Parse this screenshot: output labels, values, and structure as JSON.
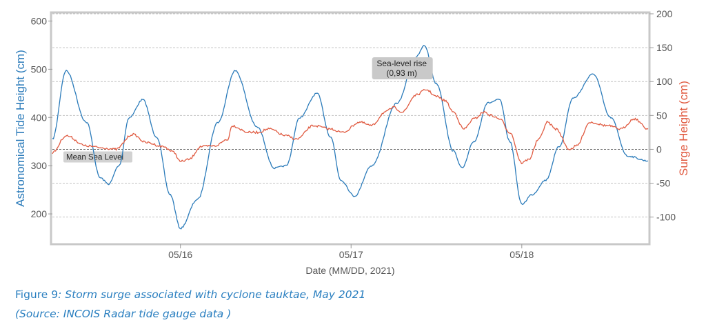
{
  "chart_data": {
    "type": "line",
    "xlabel": "Date (MM/DD, 2021)",
    "ylabel_left": "Astronomical Tide Height (cm)",
    "ylabel_right": "Surge Height (cm)",
    "x_ticks": [
      "05/16",
      "05/17",
      "05/18"
    ],
    "x_range_days": [
      15.25,
      18.74
    ],
    "y_left": {
      "min": 140,
      "max": 615,
      "ticks": [
        200,
        300,
        400,
        500,
        600
      ]
    },
    "y_right": {
      "min": -138,
      "max": 200,
      "ticks": [
        -100,
        -50,
        0,
        50,
        100,
        150,
        200
      ]
    },
    "grid": true,
    "colors": {
      "tide": "#2b7bba",
      "surge": "#e05a40",
      "left_axis_text": "#2b7bba",
      "right_axis_text": "#e05a40"
    },
    "series": [
      {
        "axis": "left",
        "points": [
          [
            15.25,
            355
          ],
          [
            15.33,
            497
          ],
          [
            15.45,
            390
          ],
          [
            15.53,
            275
          ],
          [
            15.58,
            262
          ],
          [
            15.64,
            300
          ],
          [
            15.7,
            400
          ],
          [
            15.78,
            437
          ],
          [
            15.86,
            360
          ],
          [
            15.94,
            240
          ],
          [
            16.0,
            170
          ],
          [
            16.1,
            230
          ],
          [
            16.22,
            390
          ],
          [
            16.32,
            497
          ],
          [
            16.45,
            380
          ],
          [
            16.55,
            295
          ],
          [
            16.62,
            300
          ],
          [
            16.7,
            400
          ],
          [
            16.8,
            450
          ],
          [
            16.88,
            360
          ],
          [
            16.94,
            270
          ],
          [
            17.02,
            237
          ],
          [
            17.12,
            300
          ],
          [
            17.27,
            430
          ],
          [
            17.38,
            525
          ],
          [
            17.43,
            549
          ],
          [
            17.5,
            470
          ],
          [
            17.6,
            330
          ],
          [
            17.65,
            295
          ],
          [
            17.72,
            350
          ],
          [
            17.8,
            430
          ],
          [
            17.87,
            437
          ],
          [
            17.93,
            350
          ],
          [
            18.0,
            220
          ],
          [
            18.06,
            240
          ],
          [
            18.14,
            270
          ],
          [
            18.22,
            340
          ],
          [
            18.3,
            440
          ],
          [
            18.42,
            490
          ],
          [
            18.52,
            400
          ],
          [
            18.62,
            320
          ],
          [
            18.74,
            310
          ]
        ]
      },
      {
        "axis": "right",
        "points": [
          [
            15.25,
            -5
          ],
          [
            15.33,
            20
          ],
          [
            15.45,
            5
          ],
          [
            15.55,
            2
          ],
          [
            15.62,
            0
          ],
          [
            15.72,
            22
          ],
          [
            15.8,
            10
          ],
          [
            15.9,
            4
          ],
          [
            15.96,
            -4
          ],
          [
            16.0,
            -18
          ],
          [
            16.05,
            -15
          ],
          [
            16.12,
            4
          ],
          [
            16.2,
            5
          ],
          [
            16.28,
            15
          ],
          [
            16.3,
            35
          ],
          [
            16.4,
            25
          ],
          [
            16.45,
            25
          ],
          [
            16.52,
            30
          ],
          [
            16.62,
            20
          ],
          [
            16.68,
            15
          ],
          [
            16.78,
            35
          ],
          [
            16.88,
            30
          ],
          [
            16.95,
            25
          ],
          [
            17.05,
            40
          ],
          [
            17.12,
            35
          ],
          [
            17.2,
            55
          ],
          [
            17.25,
            62
          ],
          [
            17.3,
            55
          ],
          [
            17.38,
            80
          ],
          [
            17.44,
            88
          ],
          [
            17.5,
            78
          ],
          [
            17.55,
            72
          ],
          [
            17.6,
            55
          ],
          [
            17.66,
            30
          ],
          [
            17.72,
            45
          ],
          [
            17.78,
            55
          ],
          [
            17.82,
            50
          ],
          [
            17.87,
            45
          ],
          [
            17.93,
            25
          ],
          [
            18.0,
            -20
          ],
          [
            18.04,
            -15
          ],
          [
            18.1,
            15
          ],
          [
            18.15,
            40
          ],
          [
            18.2,
            30
          ],
          [
            18.28,
            0
          ],
          [
            18.32,
            5
          ],
          [
            18.4,
            40
          ],
          [
            18.5,
            35
          ],
          [
            18.58,
            30
          ],
          [
            18.66,
            45
          ],
          [
            18.74,
            30
          ]
        ]
      }
    ],
    "mean_sea_level": {
      "label": "Mean Sea Level",
      "right_value": 0
    },
    "annotations": [
      {
        "line1": "Sea-level rise",
        "line2": "(0,93 m)",
        "at_day": 17.43
      }
    ]
  },
  "caption": {
    "figure_label": "Figure 9",
    "figure_text": ": Storm surge associated with cyclone tauktae, May 2021",
    "source": "(Source:  INCOIS Radar tide gauge data )"
  }
}
